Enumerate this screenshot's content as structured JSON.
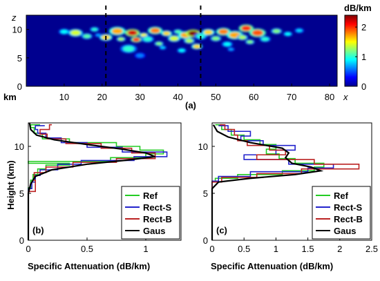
{
  "chart_data": [
    {
      "type": "heatmap",
      "panel_label": "(a)",
      "x_unit_label": "km",
      "x_axis_letter": "x",
      "y_axis_letter": "z",
      "xlim": [
        0,
        82
      ],
      "ylim": [
        0,
        12.5
      ],
      "x_ticks": [
        10,
        20,
        30,
        40,
        50,
        60,
        70,
        80
      ],
      "y_ticks": [
        0,
        5,
        10
      ],
      "dashed_lines_x": [
        21,
        46
      ],
      "colorbar": {
        "label": "dB/km",
        "min": 0,
        "max": 2.4,
        "ticks": [
          0,
          1,
          2
        ]
      },
      "colors": {
        "background": "#00008f"
      },
      "cells": [
        [
          10,
          9.6,
          0.9,
          0.6
        ],
        [
          13,
          9.4,
          1.4,
          0.8
        ],
        [
          16,
          8.8,
          1.1,
          0.6
        ],
        [
          18,
          10.0,
          1.0,
          0.5
        ],
        [
          21,
          8.6,
          1.6,
          0.7
        ],
        [
          24,
          9.7,
          1.7,
          0.9
        ],
        [
          25,
          8.3,
          1.3,
          0.5
        ],
        [
          27,
          6.6,
          1.0,
          0.9
        ],
        [
          28,
          9.4,
          2.2,
          0.8
        ],
        [
          29,
          8.2,
          2.0,
          0.6
        ],
        [
          31,
          9.0,
          1.5,
          0.5
        ],
        [
          32,
          8.3,
          1.0,
          0.7
        ],
        [
          34,
          9.8,
          1.8,
          0.8
        ],
        [
          35,
          7.5,
          1.2,
          0.5
        ],
        [
          37,
          9.3,
          1.6,
          0.6
        ],
        [
          39,
          8.4,
          1.4,
          0.7
        ],
        [
          40,
          9.6,
          1.1,
          0.5
        ],
        [
          42,
          9.0,
          1.7,
          0.8
        ],
        [
          43,
          8.0,
          1.3,
          0.6
        ],
        [
          44,
          9.3,
          2.4,
          0.8
        ],
        [
          45,
          7.0,
          1.6,
          0.6
        ],
        [
          46,
          8.8,
          1.0,
          0.7
        ],
        [
          48,
          9.5,
          1.6,
          0.7
        ],
        [
          50,
          8.4,
          1.2,
          0.6
        ],
        [
          52,
          9.6,
          1.8,
          0.8
        ],
        [
          53,
          7.4,
          0.9,
          0.6
        ],
        [
          55,
          9.0,
          1.7,
          0.9
        ],
        [
          57,
          8.6,
          1.3,
          0.6
        ],
        [
          58,
          10.2,
          2.0,
          0.8
        ],
        [
          59,
          7.8,
          1.2,
          0.5
        ],
        [
          61,
          9.4,
          1.9,
          0.9
        ],
        [
          63,
          8.3,
          1.0,
          0.6
        ],
        [
          66,
          9.7,
          1.2,
          0.6
        ],
        [
          69,
          9.2,
          0.9,
          0.5
        ],
        [
          72,
          9.8,
          0.8,
          0.5
        ],
        [
          36,
          6.8,
          0.8,
          0.4
        ],
        [
          30,
          5.4,
          0.6,
          0.6
        ],
        [
          41,
          6.3,
          0.9,
          0.5
        ],
        [
          54,
          6.5,
          0.7,
          0.4
        ],
        [
          19,
          9.0,
          0.7,
          0.4
        ]
      ]
    },
    {
      "type": "line",
      "panel_label": "(b)",
      "xlabel": "Specific Attenuation (dB/km)",
      "ylabel": "Height (km)",
      "xlim": [
        0,
        1.3
      ],
      "ylim": [
        0,
        12.5
      ],
      "x_ticks": [
        0,
        0.5,
        1
      ],
      "y_ticks": [
        0,
        5,
        10
      ],
      "legend": "bottom-right",
      "series": [
        {
          "name": "Ref",
          "color": "#22cc22",
          "step": true,
          "points": [
            [
              0,
              0
            ],
            [
              0,
              5
            ],
            [
              0.02,
              5.6
            ],
            [
              0.04,
              6.4
            ],
            [
              0.08,
              7.0
            ],
            [
              0.15,
              7.6
            ],
            [
              0.35,
              8.0
            ],
            [
              0.0,
              8.2
            ],
            [
              0.7,
              8.4
            ],
            [
              1.0,
              8.8
            ],
            [
              1.15,
              9.2
            ],
            [
              0.95,
              9.6
            ],
            [
              0.75,
              10.0
            ],
            [
              0.35,
              10.4
            ],
            [
              0.12,
              10.8
            ],
            [
              0.05,
              11.4
            ],
            [
              0.02,
              12.0
            ],
            [
              0.1,
              12.3
            ]
          ]
        },
        {
          "name": "Rect-S",
          "color": "#2222cc",
          "step": true,
          "points": [
            [
              0,
              0
            ],
            [
              0,
              5
            ],
            [
              0.03,
              5.5
            ],
            [
              0.06,
              6.2
            ],
            [
              0.1,
              6.9
            ],
            [
              0.25,
              7.5
            ],
            [
              0.45,
              8.1
            ],
            [
              0.9,
              8.5
            ],
            [
              1.18,
              8.9
            ],
            [
              0.8,
              9.4
            ],
            [
              0.5,
              9.9
            ],
            [
              0.28,
              10.4
            ],
            [
              0.15,
              10.9
            ],
            [
              0.08,
              11.4
            ],
            [
              0.06,
              11.8
            ],
            [
              0.14,
              12.2
            ]
          ]
        },
        {
          "name": "Rect-B",
          "color": "#bb2222",
          "step": true,
          "points": [
            [
              0,
              0
            ],
            [
              0,
              5.1
            ],
            [
              0.06,
              5.2
            ],
            [
              0.06,
              5.8
            ],
            [
              0.05,
              6.4
            ],
            [
              0.15,
              7.2
            ],
            [
              0.38,
              7.8
            ],
            [
              0.75,
              8.3
            ],
            [
              1.08,
              8.7
            ],
            [
              0.88,
              9.3
            ],
            [
              0.62,
              9.8
            ],
            [
              0.32,
              10.3
            ],
            [
              0.16,
              10.8
            ],
            [
              0.1,
              11.3
            ],
            [
              0.18,
              11.8
            ],
            [
              0.2,
              12.3
            ]
          ]
        },
        {
          "name": "Gaus",
          "color": "#000000",
          "step": false,
          "points": [
            [
              0,
              0
            ],
            [
              0,
              5
            ],
            [
              0.02,
              6.0
            ],
            [
              0.06,
              6.8
            ],
            [
              0.2,
              7.5
            ],
            [
              0.5,
              8.1
            ],
            [
              0.85,
              8.55
            ],
            [
              1.08,
              8.9
            ],
            [
              1.0,
              9.3
            ],
            [
              0.8,
              9.7
            ],
            [
              0.5,
              10.2
            ],
            [
              0.22,
              10.7
            ],
            [
              0.07,
              11.2
            ],
            [
              0.02,
              11.8
            ],
            [
              0.01,
              12.5
            ]
          ]
        }
      ]
    },
    {
      "type": "line",
      "panel_label": "(c)",
      "xlabel": "Specific Attenuation (dB/km)",
      "ylabel": "",
      "xlim": [
        0,
        2.5
      ],
      "ylim": [
        0,
        12.5
      ],
      "x_ticks": [
        0,
        0.5,
        1,
        1.5,
        2,
        2.5
      ],
      "y_ticks": [
        0,
        5,
        10
      ],
      "legend": "bottom-right",
      "series": [
        {
          "name": "Ref",
          "color": "#22cc22",
          "step": true,
          "points": [
            [
              0,
              0
            ],
            [
              0,
              5.5
            ],
            [
              0.05,
              6.2
            ],
            [
              0.4,
              6.6
            ],
            [
              1.1,
              7.0
            ],
            [
              1.6,
              7.4
            ],
            [
              1.75,
              7.8
            ],
            [
              1.3,
              8.2
            ],
            [
              1.05,
              8.7
            ],
            [
              0.85,
              9.2
            ],
            [
              1.0,
              9.7
            ],
            [
              0.75,
              10.2
            ],
            [
              0.5,
              10.7
            ],
            [
              0.3,
              11.2
            ],
            [
              0.15,
              11.8
            ],
            [
              0.05,
              12.3
            ]
          ]
        },
        {
          "name": "Rect-S",
          "color": "#2222cc",
          "step": true,
          "points": [
            [
              0,
              0
            ],
            [
              0,
              5.6
            ],
            [
              0.1,
              6.3
            ],
            [
              0.6,
              6.8
            ],
            [
              1.5,
              7.3
            ],
            [
              1.9,
              7.7
            ],
            [
              1.2,
              8.1
            ],
            [
              0.5,
              8.6
            ],
            [
              1.0,
              9.1
            ],
            [
              1.3,
              9.6
            ],
            [
              0.8,
              10.1
            ],
            [
              0.45,
              10.6
            ],
            [
              0.6,
              11.1
            ],
            [
              0.25,
              11.6
            ],
            [
              0.1,
              12.2
            ]
          ]
        },
        {
          "name": "Rect-B",
          "color": "#bb2222",
          "step": true,
          "points": [
            [
              0,
              0
            ],
            [
              0,
              5.7
            ],
            [
              0.15,
              6.2
            ],
            [
              0.7,
              6.7
            ],
            [
              1.4,
              7.1
            ],
            [
              2.3,
              7.6
            ],
            [
              1.6,
              8.1
            ],
            [
              0.7,
              8.6
            ],
            [
              1.15,
              9.1
            ],
            [
              0.9,
              9.6
            ],
            [
              0.55,
              10.1
            ],
            [
              0.4,
              10.6
            ],
            [
              0.35,
              11.2
            ],
            [
              0.2,
              11.8
            ],
            [
              0.12,
              12.3
            ]
          ]
        },
        {
          "name": "Gaus",
          "color": "#000000",
          "step": false,
          "points": [
            [
              0,
              0
            ],
            [
              0,
              5.5
            ],
            [
              0.1,
              6.2
            ],
            [
              0.6,
              6.6
            ],
            [
              1.3,
              7.0
            ],
            [
              1.7,
              7.4
            ],
            [
              1.55,
              7.8
            ],
            [
              1.25,
              8.2
            ],
            [
              1.15,
              8.8
            ],
            [
              1.2,
              9.3
            ],
            [
              1.1,
              9.8
            ],
            [
              0.6,
              10.4
            ],
            [
              0.25,
              11.0
            ],
            [
              0.08,
              11.6
            ],
            [
              0.02,
              12.3
            ]
          ]
        }
      ]
    }
  ]
}
